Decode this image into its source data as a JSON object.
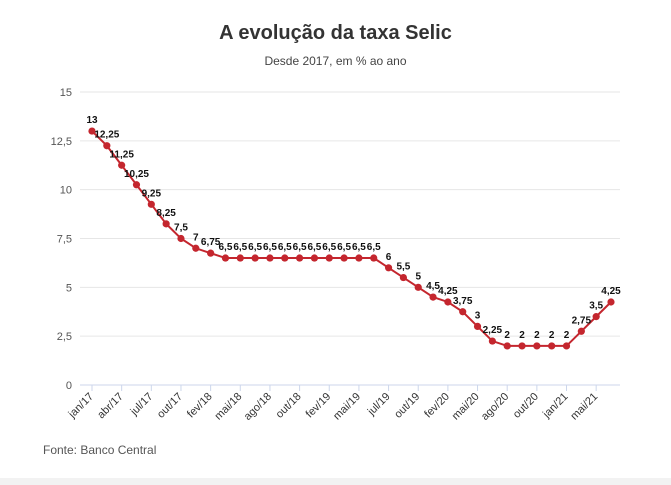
{
  "title": "A evolução da taxa Selic",
  "subtitle": "Desde 2017, em % ao ano",
  "source": "Fonte: Banco Central",
  "colors": {
    "line": "#c4262e",
    "grid": "#e6e6e6",
    "axis": "#ccd6eb"
  },
  "chart_data": {
    "type": "line",
    "ylim": [
      0,
      15
    ],
    "yticks": [
      "0",
      "2,5",
      "5",
      "7,5",
      "10",
      "12,5",
      "15"
    ],
    "ytick_values": [
      0,
      2.5,
      5,
      7.5,
      10,
      12.5,
      15
    ],
    "xtick_labels": [
      "jan/17",
      "abr/17",
      "jul/17",
      "out/17",
      "fev/18",
      "mai/18",
      "ago/18",
      "out/18",
      "fev/19",
      "mai/19",
      "jul/19",
      "out/19",
      "fev/20",
      "mai/20",
      "ago/20",
      "out/20",
      "jan/21",
      "mai/21"
    ],
    "xtick_indices": [
      0,
      2,
      4,
      6,
      8,
      10,
      12,
      14,
      16,
      18,
      20,
      22,
      24,
      26,
      28,
      30,
      32,
      34
    ],
    "grid": true,
    "series": [
      {
        "values": [
          13,
          12.25,
          11.25,
          10.25,
          9.25,
          8.25,
          7.5,
          7,
          6.75,
          6.5,
          6.5,
          6.5,
          6.5,
          6.5,
          6.5,
          6.5,
          6.5,
          6.5,
          6.5,
          6.5,
          6,
          5.5,
          5,
          4.5,
          4.25,
          3.75,
          3,
          2.25,
          2,
          2,
          2,
          2,
          2,
          2.75,
          3.5,
          4.25
        ],
        "labels": [
          "13",
          "12,25",
          "11,25",
          "10,25",
          "9,25",
          "8,25",
          "7,5",
          "7",
          "6,75",
          "6,5",
          "6,5",
          "6,5",
          "6,5",
          "6,5",
          "6,5",
          "6,5",
          "6,5",
          "6,5",
          "6,5",
          "6,5",
          "6",
          "5,5",
          "5",
          "4,5",
          "4,25",
          "3,75",
          "3",
          "2,25",
          "2",
          "2",
          "2",
          "2",
          "2",
          "2,75",
          "3,5",
          "4,25"
        ]
      }
    ]
  }
}
